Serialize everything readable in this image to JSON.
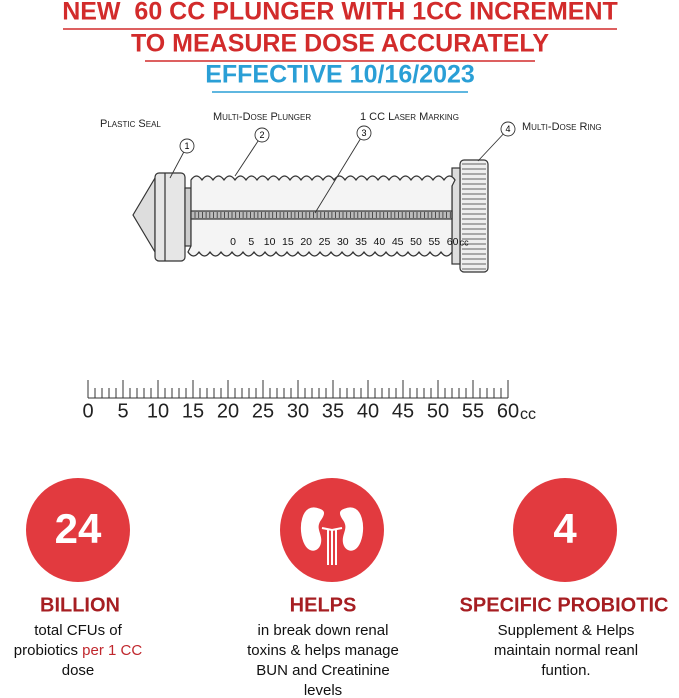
{
  "header": {
    "line1": "NEW  60 CC PLUNGER WITH 1CC INCREMENT",
    "line2": "TO MEASURE DOSE ACCURATELY",
    "line3": "EFFECTIVE 10/16/2023"
  },
  "diagram": {
    "callouts": [
      {
        "number": "1",
        "label": "Plastic Seal"
      },
      {
        "number": "2",
        "label": "Multi-Dose Plunger"
      },
      {
        "number": "3",
        "label": "1 CC Laser Marking"
      },
      {
        "number": "4",
        "label": "Multi-Dose Ring"
      }
    ],
    "scale_labels": [
      "0",
      "5",
      "10",
      "15",
      "20",
      "25",
      "30",
      "35",
      "40",
      "45",
      "50",
      "55",
      "60"
    ],
    "scale_unit": "cc"
  },
  "ruler": {
    "labels": [
      "0",
      "5",
      "10",
      "15",
      "20",
      "25",
      "30",
      "35",
      "40",
      "45",
      "50",
      "55",
      "60"
    ],
    "unit": "cc"
  },
  "features": [
    {
      "badge": "24",
      "heading": "BILLION",
      "lines": [
        "total CFUs of",
        "probiotics",
        "dose"
      ],
      "highlight": "per 1 CC"
    },
    {
      "heading": "HELPS",
      "lines": [
        "in break down renal",
        "toxins & helps manage",
        "BUN and Creatinine",
        "levels"
      ]
    },
    {
      "badge": "4",
      "heading": "SPECIFIC PROBIOTIC",
      "lines": [
        "Supplement & Helps",
        "maintain normal reanl",
        "funtion."
      ]
    }
  ]
}
